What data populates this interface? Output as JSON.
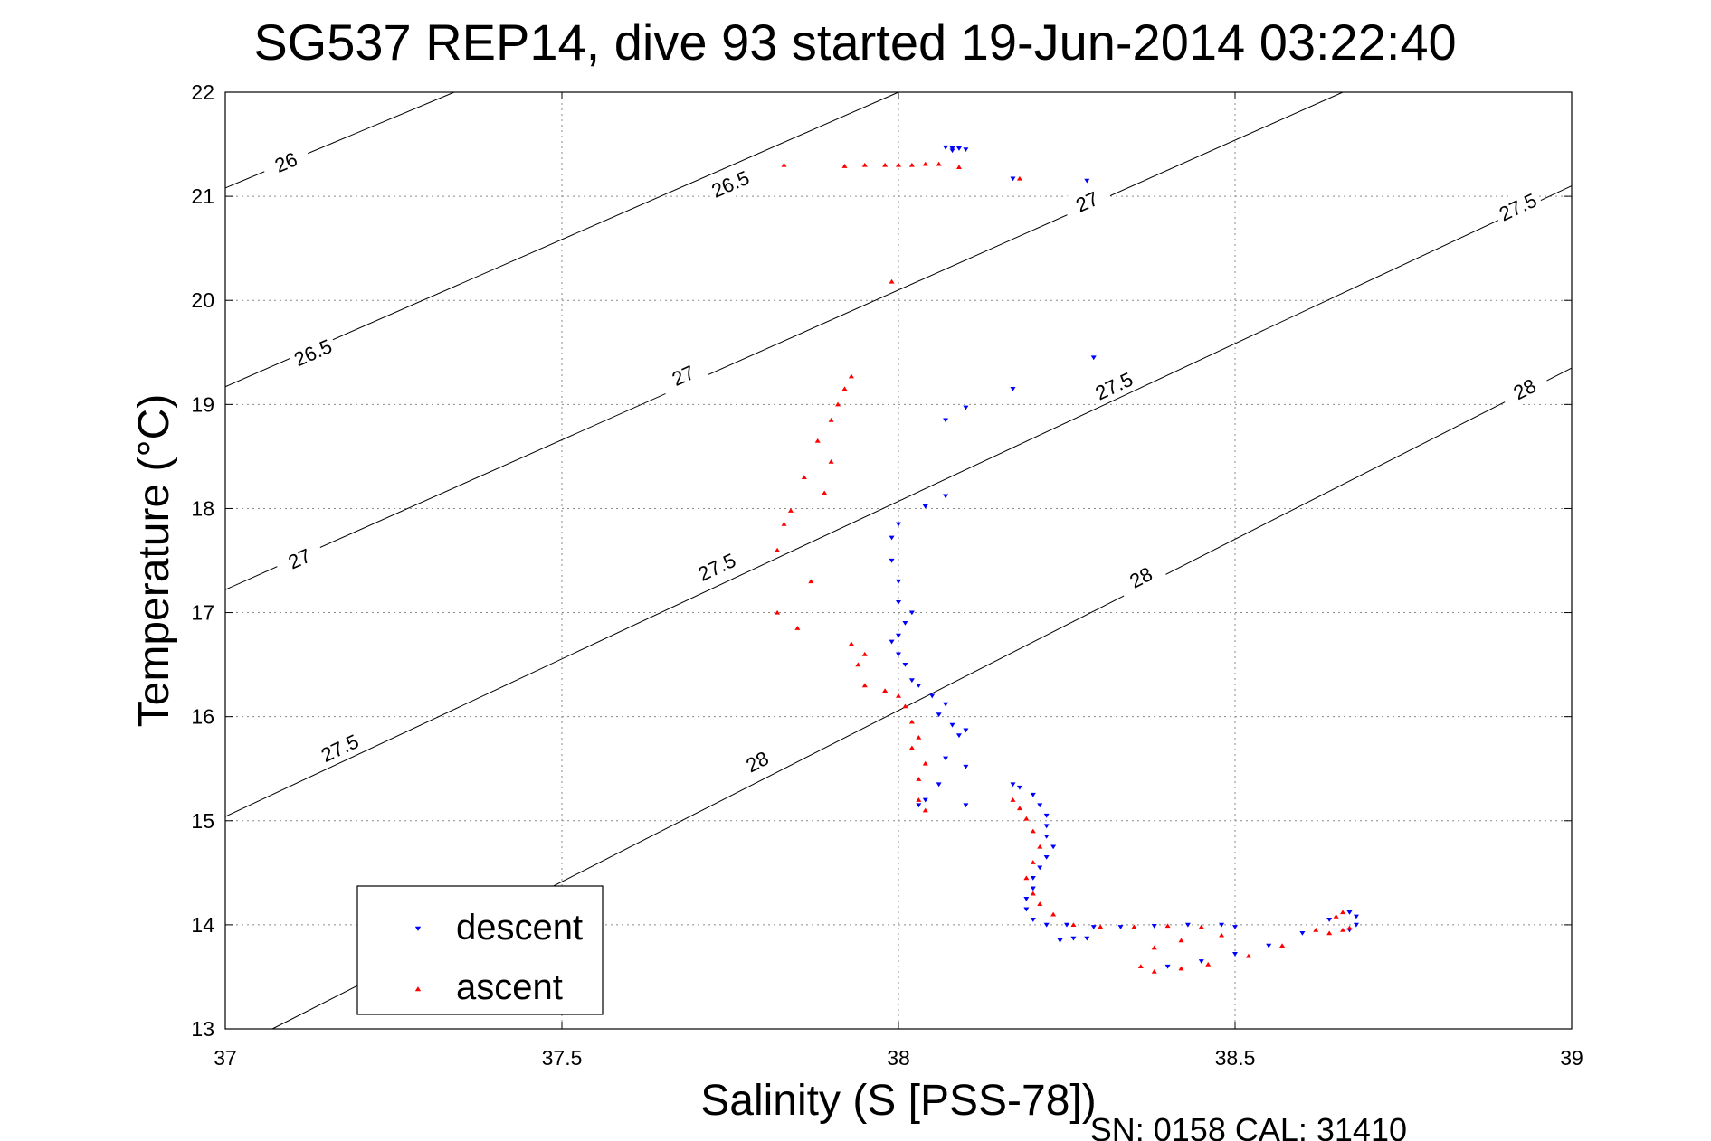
{
  "chart_data": {
    "type": "scatter",
    "title": "SG537 REP14, dive 93 started 19-Jun-2014 03:22:40",
    "xlabel": "Salinity (S [PSS-78])",
    "ylabel": "Temperature (°C)",
    "footer": "SN: 0158  CAL: 31410",
    "xlim": [
      37,
      39
    ],
    "ylim": [
      13,
      22
    ],
    "xticks": [
      "37",
      "37.5",
      "38",
      "38.5",
      "39"
    ],
    "yticks": [
      "13",
      "14",
      "15",
      "16",
      "17",
      "18",
      "19",
      "20",
      "21",
      "22"
    ],
    "grid": true,
    "legend_position": "bottom-left",
    "density_contours": [
      {
        "label": "26",
        "points": [
          [
            37,
            21.08
          ],
          [
            37.34,
            22.0
          ]
        ],
        "label_at": [
          37.09,
          21.33
        ]
      },
      {
        "label": "26.5",
        "points": [
          [
            37,
            19.17
          ],
          [
            38.0,
            22.0
          ]
        ],
        "label_at": [
          37.75,
          21.12
        ],
        "label2": "26.5",
        "label2_at": [
          37.13,
          19.5
        ]
      },
      {
        "label": "27",
        "points": [
          [
            37,
            17.22
          ],
          [
            38.66,
            22.0
          ]
        ],
        "label_at": [
          38.28,
          20.95
        ],
        "label2": "27",
        "label2_at": [
          37.68,
          19.28
        ],
        "label3": "27",
        "label3_at": [
          37.11,
          17.52
        ]
      },
      {
        "label": "27.5",
        "points": [
          [
            37,
            15.04
          ],
          [
            39.0,
            21.1
          ]
        ],
        "label_at": [
          38.92,
          20.9
        ],
        "label2": "27.5",
        "label2_at": [
          38.32,
          19.18
        ],
        "label3": "27.5",
        "label3_at": [
          37.73,
          17.44
        ],
        "label4": "27.5",
        "label4_at": [
          37.17,
          15.7
        ]
      },
      {
        "label": "28",
        "points": [
          [
            37.07,
            13.0
          ],
          [
            39.0,
            19.35
          ]
        ],
        "label_at": [
          38.93,
          19.15
        ],
        "label2": "28",
        "label2_at": [
          38.36,
          17.34
        ],
        "label3": "28",
        "label3_at": [
          37.79,
          15.57
        ]
      }
    ],
    "series": [
      {
        "name": "descent",
        "color": "#0000ff",
        "marker": "triangle-down",
        "points": [
          [
            38.07,
            21.47
          ],
          [
            38.08,
            21.46
          ],
          [
            38.09,
            21.46
          ],
          [
            38.1,
            21.45
          ],
          [
            38.08,
            21.44
          ],
          [
            38.17,
            21.17
          ],
          [
            38.28,
            21.15
          ],
          [
            38.29,
            19.45
          ],
          [
            38.17,
            19.15
          ],
          [
            38.1,
            18.97
          ],
          [
            38.07,
            18.85
          ],
          [
            38.07,
            18.12
          ],
          [
            38.04,
            18.02
          ],
          [
            38.0,
            17.85
          ],
          [
            37.99,
            17.72
          ],
          [
            37.99,
            17.5
          ],
          [
            38.0,
            17.3
          ],
          [
            38.0,
            17.1
          ],
          [
            38.02,
            17.0
          ],
          [
            38.01,
            16.9
          ],
          [
            38.0,
            16.78
          ],
          [
            37.99,
            16.72
          ],
          [
            38.0,
            16.6
          ],
          [
            38.01,
            16.5
          ],
          [
            38.02,
            16.35
          ],
          [
            38.03,
            16.3
          ],
          [
            38.05,
            16.2
          ],
          [
            38.07,
            16.12
          ],
          [
            38.06,
            16.02
          ],
          [
            38.08,
            15.92
          ],
          [
            38.1,
            15.87
          ],
          [
            38.09,
            15.82
          ],
          [
            38.07,
            15.6
          ],
          [
            38.1,
            15.52
          ],
          [
            38.06,
            15.35
          ],
          [
            38.04,
            15.2
          ],
          [
            38.03,
            15.15
          ],
          [
            38.1,
            15.15
          ],
          [
            38.17,
            15.35
          ],
          [
            38.18,
            15.32
          ],
          [
            38.2,
            15.25
          ],
          [
            38.21,
            15.15
          ],
          [
            38.22,
            15.05
          ],
          [
            38.22,
            14.95
          ],
          [
            38.22,
            14.85
          ],
          [
            38.23,
            14.75
          ],
          [
            38.22,
            14.65
          ],
          [
            38.21,
            14.55
          ],
          [
            38.2,
            14.45
          ],
          [
            38.2,
            14.35
          ],
          [
            38.19,
            14.25
          ],
          [
            38.19,
            14.15
          ],
          [
            38.2,
            14.05
          ],
          [
            38.22,
            14.0
          ],
          [
            38.25,
            14.0
          ],
          [
            38.29,
            13.98
          ],
          [
            38.33,
            13.98
          ],
          [
            38.38,
            13.99
          ],
          [
            38.43,
            14.0
          ],
          [
            38.48,
            14.0
          ],
          [
            38.5,
            13.98
          ],
          [
            38.24,
            13.85
          ],
          [
            38.26,
            13.87
          ],
          [
            38.28,
            13.87
          ],
          [
            38.4,
            13.6
          ],
          [
            38.45,
            13.65
          ],
          [
            38.5,
            13.72
          ],
          [
            38.55,
            13.8
          ],
          [
            38.6,
            13.92
          ],
          [
            38.64,
            14.05
          ],
          [
            38.67,
            14.12
          ],
          [
            38.68,
            14.08
          ],
          [
            38.68,
            14.0
          ],
          [
            38.67,
            13.95
          ]
        ]
      },
      {
        "name": "ascent",
        "color": "#ff0000",
        "marker": "triangle-up",
        "points": [
          [
            37.83,
            21.3
          ],
          [
            37.92,
            21.29
          ],
          [
            37.95,
            21.3
          ],
          [
            37.98,
            21.3
          ],
          [
            38.0,
            21.3
          ],
          [
            38.02,
            21.3
          ],
          [
            38.04,
            21.31
          ],
          [
            38.06,
            21.31
          ],
          [
            38.09,
            21.28
          ],
          [
            38.18,
            21.17
          ],
          [
            37.99,
            20.18
          ],
          [
            37.93,
            19.27
          ],
          [
            37.92,
            19.15
          ],
          [
            37.91,
            19.0
          ],
          [
            37.9,
            18.85
          ],
          [
            37.88,
            18.65
          ],
          [
            37.9,
            18.45
          ],
          [
            37.89,
            18.15
          ],
          [
            37.86,
            18.3
          ],
          [
            37.84,
            17.98
          ],
          [
            37.83,
            17.85
          ],
          [
            37.82,
            17.6
          ],
          [
            37.87,
            17.3
          ],
          [
            37.82,
            17.0
          ],
          [
            37.85,
            16.85
          ],
          [
            37.93,
            16.7
          ],
          [
            37.95,
            16.6
          ],
          [
            37.94,
            16.5
          ],
          [
            37.95,
            16.3
          ],
          [
            37.98,
            16.25
          ],
          [
            38.0,
            16.2
          ],
          [
            38.01,
            16.1
          ],
          [
            38.02,
            15.95
          ],
          [
            38.03,
            15.8
          ],
          [
            38.02,
            15.7
          ],
          [
            38.04,
            15.55
          ],
          [
            38.03,
            15.4
          ],
          [
            38.03,
            15.2
          ],
          [
            38.04,
            15.1
          ],
          [
            38.17,
            15.2
          ],
          [
            38.18,
            15.12
          ],
          [
            38.19,
            15.02
          ],
          [
            38.2,
            14.9
          ],
          [
            38.21,
            14.75
          ],
          [
            38.2,
            14.6
          ],
          [
            38.19,
            14.45
          ],
          [
            38.2,
            14.3
          ],
          [
            38.21,
            14.2
          ],
          [
            38.23,
            14.1
          ],
          [
            38.26,
            14.0
          ],
          [
            38.3,
            13.98
          ],
          [
            38.35,
            13.98
          ],
          [
            38.4,
            13.99
          ],
          [
            38.45,
            13.98
          ],
          [
            38.48,
            13.9
          ],
          [
            38.42,
            13.85
          ],
          [
            38.38,
            13.78
          ],
          [
            38.36,
            13.6
          ],
          [
            38.38,
            13.55
          ],
          [
            38.42,
            13.58
          ],
          [
            38.46,
            13.62
          ],
          [
            38.52,
            13.7
          ],
          [
            38.57,
            13.8
          ],
          [
            38.62,
            13.95
          ],
          [
            38.65,
            14.08
          ],
          [
            38.66,
            14.12
          ],
          [
            38.64,
            13.92
          ],
          [
            38.66,
            13.95
          ],
          [
            38.67,
            13.97
          ]
        ]
      }
    ]
  }
}
